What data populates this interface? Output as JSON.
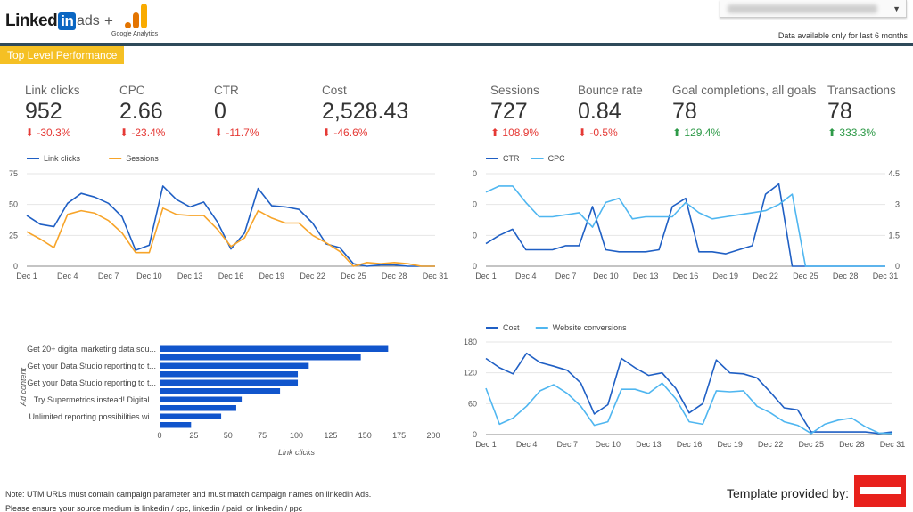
{
  "header": {
    "brand_linked": "Linked",
    "brand_in": "in",
    "brand_ads": "ads",
    "plus": "+",
    "ga_label": "Google Analytics",
    "data_note": "Data available only for last 6 months",
    "date_range_caret": "▼"
  },
  "section": {
    "title": "Top Level Performance"
  },
  "kpis": [
    {
      "label": "Link clicks",
      "value": "952",
      "change": "-30.3%",
      "direction": "down"
    },
    {
      "label": "CPC",
      "value": "2.66",
      "change": "-23.4%",
      "direction": "down"
    },
    {
      "label": "CTR",
      "value": "0",
      "change": "-11.7%",
      "direction": "down"
    },
    {
      "label": "Cost",
      "value": "2,528.43",
      "change": "-46.6%",
      "direction": "down"
    },
    {
      "label": "Sessions",
      "value": "727",
      "change": "108.9%",
      "direction": "up"
    },
    {
      "label": "Bounce rate",
      "value": "0.84",
      "change": "-0.5%",
      "direction": "down"
    },
    {
      "label": "Goal completions, all goals",
      "value": "78",
      "change": "129.4%",
      "direction": "up"
    },
    {
      "label": "Transactions",
      "value": "78",
      "change": "333.3%",
      "direction": "up"
    }
  ],
  "colors": {
    "dark_blue": "#1f5fc4",
    "light_blue": "#4fb6f0",
    "orange": "#f7a429",
    "bar_blue": "#1155cc",
    "down": "#e53935",
    "up": "#2e9a48",
    "accent": "#f5c024"
  },
  "chart_data": [
    {
      "type": "line",
      "x": [
        "Dec 1",
        "Dec 2",
        "Dec 3",
        "Dec 4",
        "Dec 5",
        "Dec 6",
        "Dec 7",
        "Dec 8",
        "Dec 9",
        "Dec 10",
        "Dec 11",
        "Dec 12",
        "Dec 13",
        "Dec 14",
        "Dec 15",
        "Dec 16",
        "Dec 17",
        "Dec 18",
        "Dec 19",
        "Dec 20",
        "Dec 21",
        "Dec 22",
        "Dec 23",
        "Dec 24",
        "Dec 25",
        "Dec 26",
        "Dec 27",
        "Dec 28",
        "Dec 29",
        "Dec 30",
        "Dec 31"
      ],
      "xticks": [
        "Dec 1",
        "Dec 4",
        "Dec 7",
        "Dec 10",
        "Dec 13",
        "Dec 16",
        "Dec 19",
        "Dec 22",
        "Dec 25",
        "Dec 28",
        "Dec 31"
      ],
      "yticks": [
        "0",
        "25",
        "50",
        "75"
      ],
      "ylim": [
        0,
        75
      ],
      "series": [
        {
          "name": "Link clicks",
          "color": "#1f5fc4",
          "values": [
            41,
            34,
            32,
            51,
            59,
            56,
            51,
            40,
            13,
            17,
            65,
            54,
            48,
            52,
            36,
            14,
            27,
            63,
            49,
            48,
            46,
            35,
            18,
            15,
            2,
            0,
            1,
            1,
            0,
            0,
            0
          ]
        },
        {
          "name": "Sessions",
          "color": "#f7a429",
          "values": [
            28,
            22,
            15,
            42,
            45,
            43,
            37,
            27,
            11,
            11,
            47,
            42,
            41,
            41,
            30,
            16,
            23,
            45,
            39,
            35,
            35,
            25,
            19,
            12,
            0,
            3,
            2,
            3,
            2,
            0,
            0
          ]
        }
      ],
      "legend": "top-left"
    },
    {
      "type": "line",
      "x": [
        "Dec 1",
        "Dec 2",
        "Dec 3",
        "Dec 4",
        "Dec 5",
        "Dec 6",
        "Dec 7",
        "Dec 8",
        "Dec 9",
        "Dec 10",
        "Dec 11",
        "Dec 12",
        "Dec 13",
        "Dec 14",
        "Dec 15",
        "Dec 16",
        "Dec 17",
        "Dec 18",
        "Dec 19",
        "Dec 20",
        "Dec 21",
        "Dec 22",
        "Dec 23",
        "Dec 24",
        "Dec 25",
        "Dec 26",
        "Dec 27",
        "Dec 28",
        "Dec 29",
        "Dec 30",
        "Dec 31"
      ],
      "xticks": [
        "Dec 1",
        "Dec 4",
        "Dec 7",
        "Dec 10",
        "Dec 13",
        "Dec 16",
        "Dec 19",
        "Dec 22",
        "Dec 25",
        "Dec 28",
        "Dec 31"
      ],
      "yticks_left": [
        "0",
        "0",
        "0",
        "0"
      ],
      "yticks_right": [
        "0",
        "1.5",
        "3",
        "4.5"
      ],
      "ylim_right": [
        0,
        4.5
      ],
      "series": [
        {
          "name": "CTR",
          "axis": "left",
          "color": "#1f5fc4",
          "values": [
            1.1,
            1.5,
            1.8,
            0.8,
            0.8,
            0.8,
            1.0,
            1.0,
            2.9,
            0.8,
            0.7,
            0.7,
            0.7,
            0.8,
            2.9,
            3.3,
            0.7,
            0.7,
            0.6,
            0.8,
            1.0,
            3.5,
            4.0,
            0,
            0,
            0,
            0,
            0,
            0,
            0,
            0
          ]
        },
        {
          "name": "CPC",
          "axis": "right",
          "color": "#4fb6f0",
          "values": [
            3.6,
            3.9,
            3.9,
            3.1,
            2.4,
            2.4,
            2.5,
            2.6,
            1.9,
            3.1,
            3.3,
            2.3,
            2.4,
            2.4,
            2.4,
            3.1,
            2.6,
            2.3,
            2.4,
            2.5,
            2.6,
            2.7,
            3.0,
            3.5,
            0,
            0,
            0,
            0,
            0,
            0,
            0
          ]
        }
      ],
      "legend": "top-left"
    },
    {
      "type": "bar",
      "orientation": "horizontal",
      "ylabel": "Ad content",
      "xlabel": "Link clicks",
      "xticks": [
        "0",
        "25",
        "50",
        "75",
        "100",
        "125",
        "150",
        "175",
        "200"
      ],
      "xlim": [
        0,
        200
      ],
      "category_labels": [
        "Get 20+ digital marketing data sou...",
        "",
        "Get your Data Studio reporting to t...",
        "",
        "Get your Data Studio reporting to t...",
        "",
        "Try Supermetrics instead! Digital...",
        "",
        "Unlimited reporting possibilities wi...",
        ""
      ],
      "values": [
        167,
        147,
        109,
        101,
        101,
        88,
        60,
        56,
        45,
        23
      ]
    },
    {
      "type": "line",
      "x": [
        "Dec 1",
        "Dec 2",
        "Dec 3",
        "Dec 4",
        "Dec 5",
        "Dec 6",
        "Dec 7",
        "Dec 8",
        "Dec 9",
        "Dec 10",
        "Dec 11",
        "Dec 12",
        "Dec 13",
        "Dec 14",
        "Dec 15",
        "Dec 16",
        "Dec 17",
        "Dec 18",
        "Dec 19",
        "Dec 20",
        "Dec 21",
        "Dec 22",
        "Dec 23",
        "Dec 24",
        "Dec 25",
        "Dec 26",
        "Dec 27",
        "Dec 28",
        "Dec 29",
        "Dec 30",
        "Dec 31"
      ],
      "xticks": [
        "Dec 1",
        "Dec 4",
        "Dec 7",
        "Dec 10",
        "Dec 13",
        "Dec 16",
        "Dec 19",
        "Dec 22",
        "Dec 25",
        "Dec 28",
        "Dec 31"
      ],
      "yticks": [
        "0",
        "60",
        "120",
        "180"
      ],
      "ylim": [
        0,
        180
      ],
      "series": [
        {
          "name": "Cost",
          "color": "#1f5fc4",
          "values": [
            148,
            130,
            118,
            158,
            140,
            133,
            125,
            100,
            40,
            58,
            148,
            130,
            115,
            120,
            90,
            42,
            60,
            145,
            120,
            118,
            110,
            82,
            52,
            48,
            5,
            5,
            5,
            5,
            5,
            2,
            5
          ]
        },
        {
          "name": "Website conversions",
          "color": "#4fb6f0",
          "values": [
            90,
            20,
            32,
            55,
            85,
            97,
            80,
            55,
            18,
            25,
            88,
            88,
            80,
            100,
            70,
            25,
            20,
            85,
            83,
            85,
            55,
            42,
            25,
            18,
            2,
            20,
            28,
            32,
            15,
            3,
            2
          ]
        }
      ],
      "legend": "top-left"
    }
  ],
  "footer": {
    "note_line1": "Note: UTM URLs must contain campaign parameter and must match campaign names on linkedin Ads.",
    "note_line2": "Please ensure your source medium is linkedin / cpc, linkedin / paid, or linkedin / ppc",
    "template_by": "Template provided by:",
    "logo_text": "SUPERMETRICS"
  }
}
